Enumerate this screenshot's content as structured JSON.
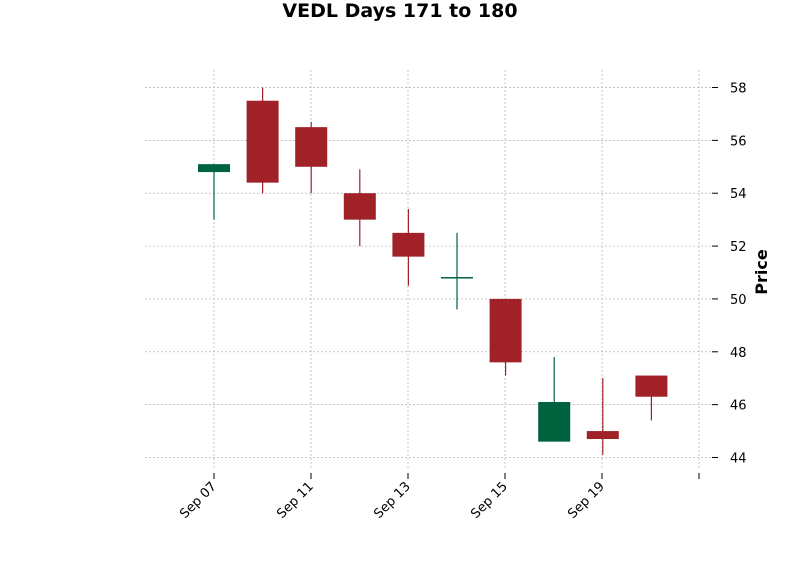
{
  "chart_data": {
    "type": "candlestick",
    "title": "VEDL Days 171 to 180",
    "xlabel": "",
    "ylabel": "Price",
    "ylim": [
      43.6,
      58.7
    ],
    "y_ticks": [
      44,
      46,
      48,
      50,
      52,
      54,
      56,
      58
    ],
    "x_tick_labels": [
      "Sep 07",
      "Sep 11",
      "Sep 13",
      "Sep 15",
      "Sep 19",
      ""
    ],
    "grid": true,
    "colors": {
      "up": "#006340",
      "down": "#a02128",
      "grid": "#b0b0b0"
    },
    "candles": [
      {
        "open": 54.8,
        "high": 55.1,
        "low": 53.0,
        "close": 55.1
      },
      {
        "open": 57.5,
        "high": 58.0,
        "low": 54.0,
        "close": 54.4
      },
      {
        "open": 56.5,
        "high": 56.7,
        "low": 54.0,
        "close": 55.0
      },
      {
        "open": 54.0,
        "high": 54.9,
        "low": 52.0,
        "close": 53.0
      },
      {
        "open": 52.5,
        "high": 53.4,
        "low": 50.5,
        "close": 51.6
      },
      {
        "open": 50.8,
        "high": 52.5,
        "low": 49.6,
        "close": 50.8
      },
      {
        "open": 50.0,
        "high": 50.0,
        "low": 47.1,
        "close": 47.6
      },
      {
        "open": 44.6,
        "high": 47.8,
        "low": 44.6,
        "close": 46.1
      },
      {
        "open": 45.0,
        "high": 47.0,
        "low": 44.1,
        "close": 44.7
      },
      {
        "open": 47.1,
        "high": 47.1,
        "low": 45.4,
        "close": 46.3
      }
    ]
  }
}
